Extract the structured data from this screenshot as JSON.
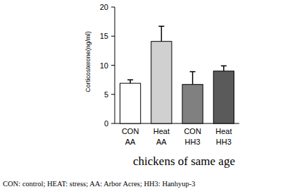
{
  "chart_data": {
    "type": "bar",
    "y_label": "Corticosterone(ng/ml)",
    "x_label": "chickens of same age",
    "caption": "CON: control; HEAT: stress; AA: Arbor Acres; HH3: Hanhyup-3",
    "categories": [
      "CON AA",
      "Heat AA",
      "CON HH3",
      "Heat HH3"
    ],
    "values": [
      6.9,
      14.1,
      6.7,
      9.0
    ],
    "errors": [
      0.6,
      2.6,
      2.2,
      0.9
    ],
    "colors": [
      "#ffffff",
      "#d0d0d0",
      "#808080",
      "#5a5a5a"
    ],
    "ylim": [
      0,
      20
    ],
    "yticks": [
      0,
      5,
      10,
      15,
      20
    ],
    "grid": false
  }
}
